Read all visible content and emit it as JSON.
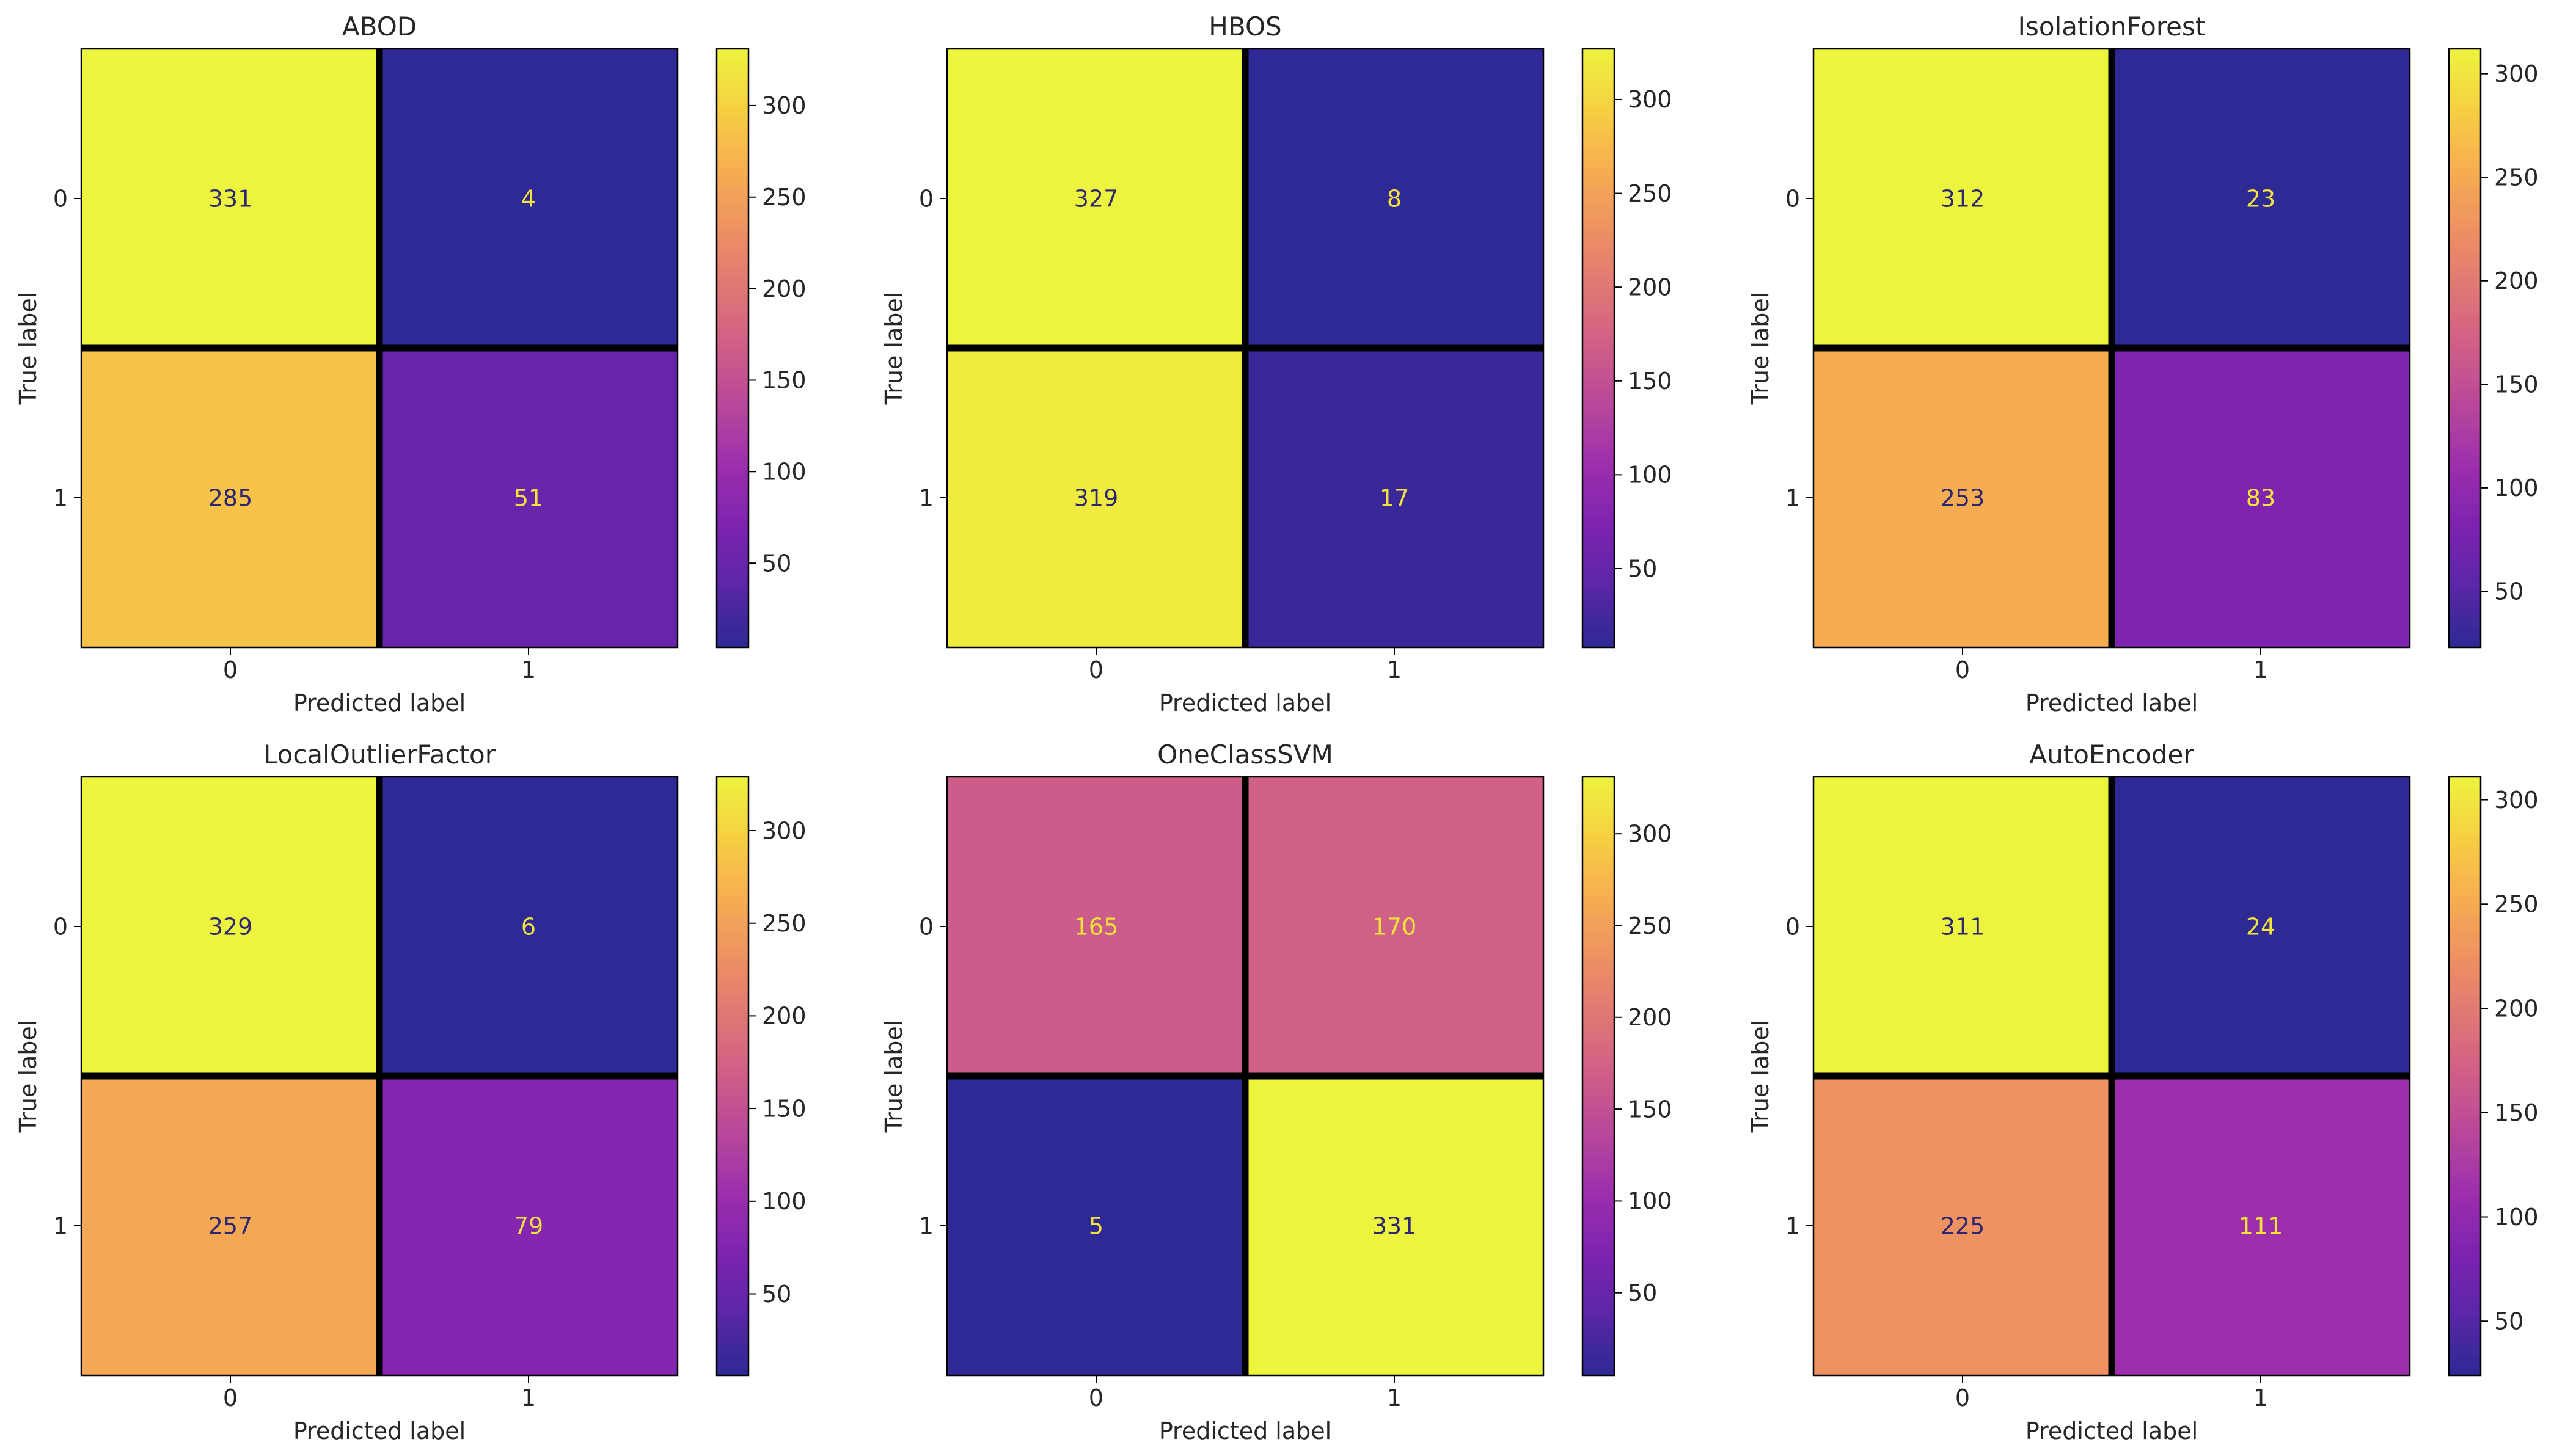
{
  "chart_data": [
    {
      "type": "heatmap",
      "title": "ABOD",
      "xlabel": "Predicted label",
      "ylabel": "True label",
      "x_ticks": [
        "0",
        "1"
      ],
      "y_ticks": [
        "0",
        "1"
      ],
      "matrix": [
        [
          331,
          4
        ],
        [
          285,
          51
        ]
      ],
      "colormap": "plasma",
      "vmin": 4,
      "vmax": 331,
      "colorbar_ticks": [
        50,
        100,
        150,
        200,
        250,
        300
      ]
    },
    {
      "type": "heatmap",
      "title": "HBOS",
      "xlabel": "Predicted label",
      "ylabel": "True label",
      "x_ticks": [
        "0",
        "1"
      ],
      "y_ticks": [
        "0",
        "1"
      ],
      "matrix": [
        [
          327,
          8
        ],
        [
          319,
          17
        ]
      ],
      "colormap": "plasma",
      "vmin": 8,
      "vmax": 327,
      "colorbar_ticks": [
        50,
        100,
        150,
        200,
        250,
        300
      ]
    },
    {
      "type": "heatmap",
      "title": "IsolationForest",
      "xlabel": "Predicted label",
      "ylabel": "True label",
      "x_ticks": [
        "0",
        "1"
      ],
      "y_ticks": [
        "0",
        "1"
      ],
      "matrix": [
        [
          312,
          23
        ],
        [
          253,
          83
        ]
      ],
      "colormap": "plasma",
      "vmin": 23,
      "vmax": 312,
      "colorbar_ticks": [
        50,
        100,
        150,
        200,
        250,
        300
      ]
    },
    {
      "type": "heatmap",
      "title": "LocalOutlierFactor",
      "xlabel": "Predicted label",
      "ylabel": "True label",
      "x_ticks": [
        "0",
        "1"
      ],
      "y_ticks": [
        "0",
        "1"
      ],
      "matrix": [
        [
          329,
          6
        ],
        [
          257,
          79
        ]
      ],
      "colormap": "plasma",
      "vmin": 6,
      "vmax": 329,
      "colorbar_ticks": [
        50,
        100,
        150,
        200,
        250,
        300
      ]
    },
    {
      "type": "heatmap",
      "title": "OneClassSVM",
      "xlabel": "Predicted label",
      "ylabel": "True label",
      "x_ticks": [
        "0",
        "1"
      ],
      "y_ticks": [
        "0",
        "1"
      ],
      "matrix": [
        [
          165,
          170
        ],
        [
          5,
          331
        ]
      ],
      "colormap": "plasma",
      "vmin": 5,
      "vmax": 331,
      "colorbar_ticks": [
        50,
        100,
        150,
        200,
        250,
        300
      ]
    },
    {
      "type": "heatmap",
      "title": "AutoEncoder",
      "xlabel": "Predicted label",
      "ylabel": "True label",
      "x_ticks": [
        "0",
        "1"
      ],
      "y_ticks": [
        "0",
        "1"
      ],
      "matrix": [
        [
          311,
          24
        ],
        [
          225,
          111
        ]
      ],
      "colormap": "plasma",
      "vmin": 24,
      "vmax": 311,
      "colorbar_ticks": [
        50,
        100,
        150,
        200,
        250,
        300
      ]
    }
  ]
}
